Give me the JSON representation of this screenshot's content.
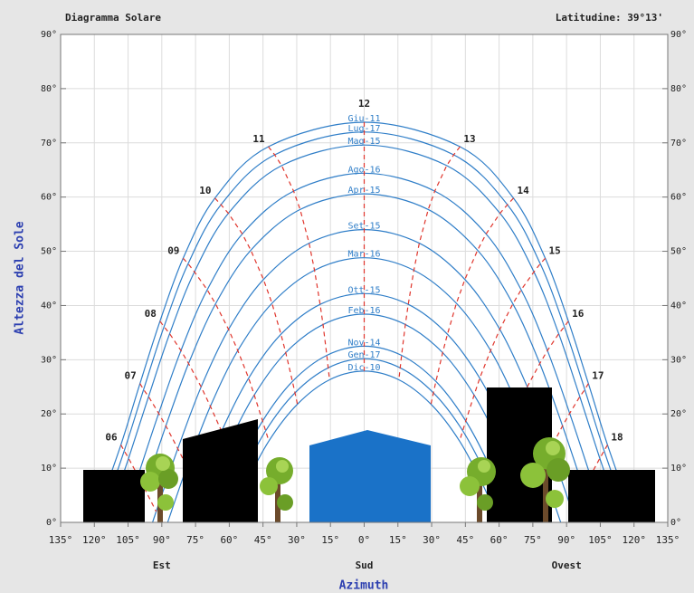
{
  "chart_data": {
    "type": "line",
    "title": "Diagramma Solare",
    "subtitle": "Latitudine: 39°13'",
    "x_label": "Azimuth",
    "y_label": "Altezza del Sole",
    "xlim": [
      -135,
      135
    ],
    "ylim": [
      0,
      90
    ],
    "xticks": [
      {
        "value": -135,
        "label": "135°"
      },
      {
        "value": -120,
        "label": "120°"
      },
      {
        "value": -105,
        "label": "105°"
      },
      {
        "value": -90,
        "label": "90°"
      },
      {
        "value": -75,
        "label": "75°"
      },
      {
        "value": -60,
        "label": "60°"
      },
      {
        "value": -45,
        "label": "45°"
      },
      {
        "value": -30,
        "label": "30°"
      },
      {
        "value": -15,
        "label": "15°"
      },
      {
        "value": 0,
        "label": "0°"
      },
      {
        "value": 15,
        "label": "15°"
      },
      {
        "value": 30,
        "label": "30°"
      },
      {
        "value": 45,
        "label": "45°"
      },
      {
        "value": 60,
        "label": "60°"
      },
      {
        "value": 75,
        "label": "75°"
      },
      {
        "value": 90,
        "label": "90°"
      },
      {
        "value": 105,
        "label": "105°"
      },
      {
        "value": 120,
        "label": "120°"
      },
      {
        "value": 135,
        "label": "135°"
      }
    ],
    "yticks": [
      {
        "value": 0,
        "label": "0°"
      },
      {
        "value": 10,
        "label": "10°"
      },
      {
        "value": 20,
        "label": "20°"
      },
      {
        "value": 30,
        "label": "30°"
      },
      {
        "value": 40,
        "label": "40°"
      },
      {
        "value": 50,
        "label": "50°"
      },
      {
        "value": 60,
        "label": "60°"
      },
      {
        "value": 70,
        "label": "70°"
      },
      {
        "value": 80,
        "label": "80°"
      },
      {
        "value": 90,
        "label": "90°"
      }
    ],
    "directions": [
      {
        "value": -90,
        "label": "Est"
      },
      {
        "value": 0,
        "label": "Sud"
      },
      {
        "value": 90,
        "label": "Ovest"
      }
    ],
    "grid": true,
    "hours": [
      "06",
      "07",
      "08",
      "09",
      "10",
      "11",
      "12",
      "13",
      "14",
      "15",
      "16",
      "17",
      "18"
    ],
    "hour_color": "#e0352c",
    "series": [
      {
        "name": "Giu-11",
        "color": "#2f7ec8",
        "x": [
          -120.3,
          -108.2,
          -99.7,
          -90.8,
          -80.5,
          -66.4,
          -42.6,
          0,
          42.6,
          66.4,
          80.5,
          90.8,
          99.7,
          108.2,
          120.3
        ],
        "y": [
          0,
          14.3,
          25.6,
          37.1,
          48.7,
          59.8,
          69.3,
          73.8,
          69.3,
          59.8,
          48.7,
          37.1,
          25.6,
          14.3,
          0
        ]
      },
      {
        "name": "Lug-17",
        "color": "#2f7ec8",
        "x": [
          -117.8,
          -106.7,
          -98.1,
          -89.0,
          -78.3,
          -63.7,
          -39.8,
          0,
          39.8,
          63.7,
          78.3,
          89.0,
          98.1,
          106.7,
          117.8
        ],
        "y": [
          0,
          13.2,
          24.5,
          36.1,
          47.7,
          58.6,
          67.8,
          72.0,
          67.8,
          58.6,
          47.7,
          36.1,
          24.5,
          13.2,
          0
        ]
      },
      {
        "name": "Mag-15",
        "color": "#2f7ec8",
        "x": [
          -114.6,
          -104.8,
          -95.9,
          -86.5,
          -75.5,
          -60.4,
          -36.7,
          0,
          36.7,
          60.4,
          75.5,
          86.5,
          95.9,
          104.8,
          114.6
        ],
        "y": [
          0,
          11.8,
          23.2,
          34.8,
          46.2,
          57.0,
          65.8,
          69.6,
          65.8,
          57.0,
          46.2,
          34.8,
          23.2,
          11.8,
          0
        ]
      },
      {
        "name": "Ago-16",
        "color": "#2f7ec8",
        "x": [
          -107.7,
          -100.6,
          -91.4,
          -81.5,
          -69.8,
          -54.2,
          -31.4,
          0,
          31.4,
          54.2,
          69.8,
          81.5,
          91.4,
          100.6,
          107.7
        ],
        "y": [
          0,
          8.6,
          20.1,
          31.7,
          42.9,
          53.2,
          61.1,
          64.4,
          61.1,
          53.2,
          42.9,
          31.7,
          20.1,
          8.6,
          0
        ]
      },
      {
        "name": "Apr-15",
        "color": "#2f7ec8",
        "x": [
          -102.7,
          -97.6,
          -88.2,
          -78.1,
          -66.1,
          -50.4,
          -28.5,
          0,
          28.5,
          50.4,
          66.1,
          78.1,
          88.2,
          97.6,
          102.7
        ],
        "y": [
          0,
          6.2,
          17.8,
          29.3,
          40.3,
          50.2,
          57.7,
          60.6,
          57.7,
          50.2,
          40.3,
          29.3,
          17.8,
          6.2,
          0
        ]
      },
      {
        "name": "Set-15",
        "color": "#2f7ec8",
        "x": [
          -94.1,
          -92.5,
          -82.9,
          -72.5,
          -60.3,
          -44.8,
          -24.5,
          0,
          24.5,
          44.8,
          60.3,
          72.5,
          82.9,
          92.5,
          94.1
        ],
        "y": [
          0,
          2.0,
          13.6,
          25.0,
          35.6,
          44.8,
          51.5,
          54.0,
          51.5,
          44.8,
          35.6,
          25.0,
          13.6,
          2.0,
          0
        ]
      },
      {
        "name": "Mar-16",
        "color": "#2f7ec8",
        "x": [
          -87.4,
          -78.8,
          -68.4,
          -56.2,
          -41.0,
          -22.1,
          0,
          22.1,
          41.0,
          56.2,
          68.4,
          78.8,
          87.4
        ],
        "y": [
          0,
          10.3,
          21.4,
          31.7,
          40.4,
          46.5,
          48.8,
          46.5,
          40.4,
          31.7,
          21.4,
          10.3,
          0
        ]
      },
      {
        "name": "Ott-15",
        "color": "#2f7ec8",
        "x": [
          -78.9,
          -73.8,
          -63.4,
          -51.4,
          -37.0,
          -19.6,
          0,
          19.6,
          37.0,
          51.4,
          63.4,
          73.8,
          78.9
        ],
        "y": [
          0,
          6.0,
          16.8,
          26.6,
          34.7,
          40.2,
          42.2,
          40.2,
          34.7,
          26.6,
          16.8,
          6.0,
          0
        ]
      },
      {
        "name": "Feb-16",
        "color": "#2f7ec8",
        "x": [
          -73.9,
          -70.9,
          -60.7,
          -48.9,
          -34.9,
          -18.3,
          0,
          18.3,
          34.9,
          48.9,
          60.7,
          70.9,
          73.9
        ],
        "y": [
          0,
          3.4,
          14.0,
          23.5,
          31.3,
          36.5,
          38.4,
          36.5,
          31.3,
          23.5,
          14.0,
          3.4,
          0
        ]
      },
      {
        "name": "Nov-14",
        "color": "#2f7ec8",
        "x": [
          -66.1,
          -56.5,
          -45.2,
          -31.9,
          -16.6,
          0,
          16.6,
          31.9,
          45.2,
          56.5,
          66.1
        ],
        "y": [
          0,
          9.7,
          18.7,
          26.0,
          30.8,
          32.5,
          30.8,
          26.0,
          18.7,
          9.7,
          0
        ]
      },
      {
        "name": "Gen-17",
        "color": "#2f7ec8",
        "x": [
          -63.0,
          -55.0,
          -43.8,
          -30.8,
          -16.0,
          0,
          16.0,
          30.8,
          43.8,
          55.0,
          63.0
        ],
        "y": [
          0,
          8.1,
          16.9,
          23.9,
          28.5,
          30.2,
          28.5,
          23.9,
          16.9,
          8.1,
          0
        ]
      },
      {
        "name": "Dic-10",
        "color": "#2f7ec8",
        "x": [
          -59.8,
          -53.4,
          -42.4,
          -29.7,
          -15.4,
          0,
          15.4,
          29.7,
          42.4,
          53.4,
          59.8
        ],
        "y": [
          0,
          6.4,
          15.0,
          21.8,
          26.3,
          27.9,
          26.3,
          21.8,
          15.0,
          6.4,
          0
        ]
      }
    ]
  }
}
